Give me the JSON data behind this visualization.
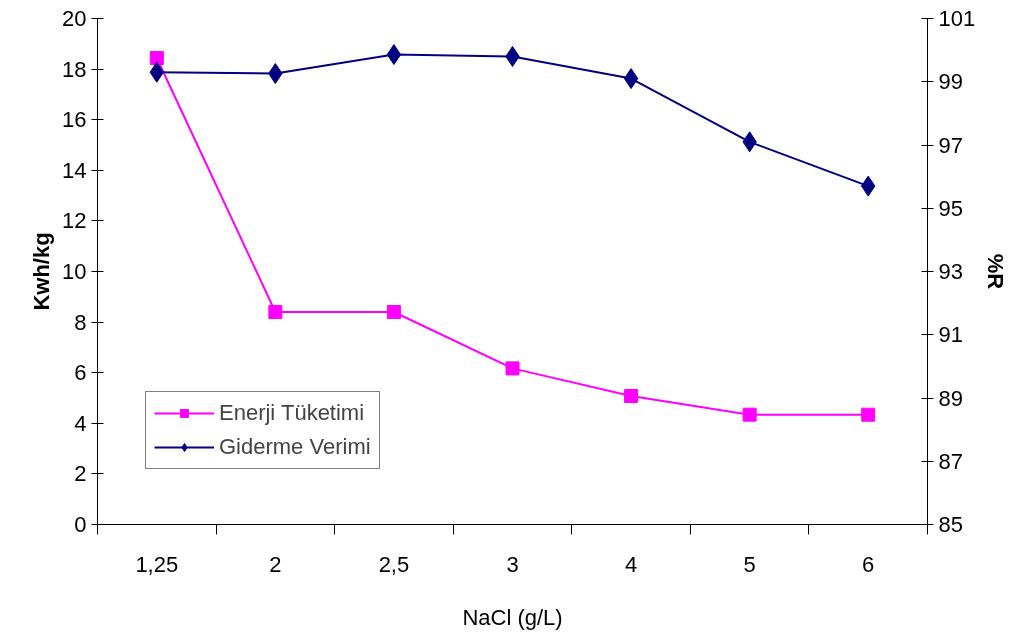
{
  "chart_data": {
    "type": "line",
    "xlabel": "NaCl (g/L)",
    "ylabel": "Kwh/kg",
    "y2label": "%R",
    "categories": [
      "1,25",
      "2",
      "2,5",
      "3",
      "4",
      "5",
      "6"
    ],
    "series": [
      {
        "name": "Enerji Tüketimi",
        "color": "#ff00ff",
        "marker": "square",
        "values": [
          18.44,
          8.4,
          8.4,
          6.17,
          5.08,
          4.34,
          4.34
        ]
      },
      {
        "name": "Giderme Verimi",
        "color": "#000080",
        "marker": "diamond",
        "axis": "y2",
        "values": [
          99.3,
          99.26,
          99.86,
          99.8,
          99.1,
          97.1,
          95.7
        ]
      }
    ],
    "ylim": [
      0,
      20
    ],
    "yticks": [
      0,
      2,
      4,
      6,
      8,
      10,
      12,
      14,
      16,
      18,
      20
    ],
    "y2lim": [
      85,
      101
    ],
    "y2ticks": [
      85,
      87,
      89,
      91,
      93,
      95,
      97,
      99,
      101
    ],
    "grid": false,
    "legend": "bottom left",
    "line_style": "solid"
  }
}
